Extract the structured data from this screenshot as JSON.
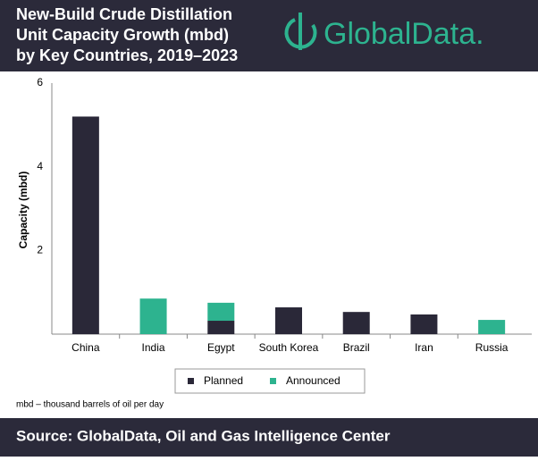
{
  "chart_data": {
    "type": "stacked-bar",
    "title": [
      "New-Build Crude Distillation",
      "Unit Capacity Growth (mbd)",
      "by Key Countries, 2019–2023"
    ],
    "logo": "GlobalData.",
    "y_label": "Capacity (mbd)",
    "categories": [
      "China",
      "India",
      "Egypt",
      "South Korea",
      "Brazil",
      "Iran",
      "Russia"
    ],
    "series": [
      {
        "name": "Planned",
        "color": "#2a2838",
        "values": [
          5.2,
          0,
          0.32,
          0.64,
          0.53,
          0.47,
          0
        ]
      },
      {
        "name": "Announced",
        "color": "#2db38f",
        "values": [
          0,
          0.85,
          0.43,
          0,
          0,
          0,
          0.34
        ]
      }
    ],
    "ylim": [
      0,
      6
    ],
    "yticks": [
      2,
      4,
      6
    ],
    "grid": false,
    "note": "mbd – thousand barrels of oil per day",
    "source": "Source: GlobalData, Oil and Gas Intelligence Center"
  }
}
